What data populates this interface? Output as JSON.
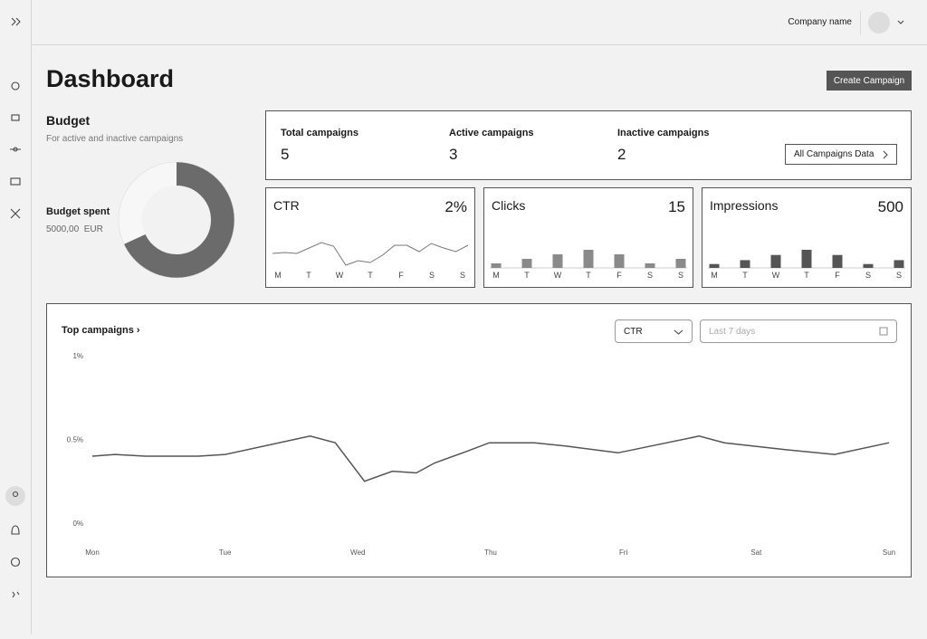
{
  "header": {
    "company_name": "Company name"
  },
  "page": {
    "title": "Dashboard",
    "create_button": "Create Campaign"
  },
  "budget": {
    "title": "Budget",
    "subtitle": "For active and inactive campaigns",
    "spent_label": "Budget spent",
    "spent_value": "5000,00",
    "currency": "EUR",
    "chart": {
      "type": "pie",
      "values": [
        68,
        32
      ],
      "colors": [
        "#6b6b6b",
        "#f7f7f7"
      ]
    }
  },
  "stats": {
    "items": [
      {
        "label": "Total campaigns",
        "value": 5
      },
      {
        "label": "Active campaigns",
        "value": 3
      },
      {
        "label": "Inactive campaigns",
        "value": 2
      }
    ],
    "button": "All Campaigns Data"
  },
  "cards": [
    {
      "title": "CTR",
      "value": "2%",
      "type": "line",
      "color": "#777",
      "days": [
        "M",
        "T",
        "W",
        "T",
        "F",
        "S",
        "S"
      ],
      "values": [
        16,
        17,
        16,
        22,
        28,
        24,
        3,
        8,
        6,
        14,
        25,
        25,
        18,
        27,
        22,
        18,
        25
      ]
    },
    {
      "title": "Clicks",
      "value": 15,
      "type": "bar",
      "color": "#8a8a8a",
      "days": [
        "M",
        "T",
        "W",
        "T",
        "F",
        "S",
        "S"
      ],
      "values": [
        1,
        2,
        3,
        4,
        3,
        1,
        2
      ]
    },
    {
      "title": "Impressions",
      "value": 500,
      "type": "bar",
      "color": "#555",
      "days": [
        "M",
        "T",
        "W",
        "T",
        "F",
        "S",
        "S"
      ],
      "values": [
        30,
        60,
        100,
        140,
        100,
        30,
        60
      ]
    }
  ],
  "chart_data": {
    "type": "line",
    "title": "Top campaigns",
    "metric_select": "CTR",
    "date_placeholder": "Last 7 days",
    "color": "#555",
    "x": [
      0,
      0.17,
      0.4,
      0.8,
      1.0,
      1.64,
      1.83,
      2.05,
      2.26,
      2.44,
      2.58,
      2.79,
      2.99,
      3.33,
      3.57,
      3.96,
      4.57,
      4.76,
      5.21,
      5.59,
      6
    ],
    "values": [
      0.4,
      0.41,
      0.4,
      0.4,
      0.41,
      0.52,
      0.48,
      0.25,
      0.31,
      0.3,
      0.36,
      0.42,
      0.48,
      0.48,
      0.46,
      0.42,
      0.52,
      0.48,
      0.44,
      0.41,
      0.48
    ],
    "xlim": [
      0,
      6
    ],
    "xticks": [
      {
        "value": 0,
        "label": "Mon"
      },
      {
        "value": 1,
        "label": "Tue"
      },
      {
        "value": 2,
        "label": "Wed"
      },
      {
        "value": 3,
        "label": "Thu"
      },
      {
        "value": 4,
        "label": "Fri"
      },
      {
        "value": 5,
        "label": "Sat"
      },
      {
        "value": 6,
        "label": "Sun"
      }
    ],
    "ylim": [
      0,
      1
    ],
    "yticks": [
      {
        "value": 0,
        "label": "0%"
      },
      {
        "value": 0.5,
        "label": "0.5%"
      },
      {
        "value": 1,
        "label": "1%"
      }
    ]
  }
}
